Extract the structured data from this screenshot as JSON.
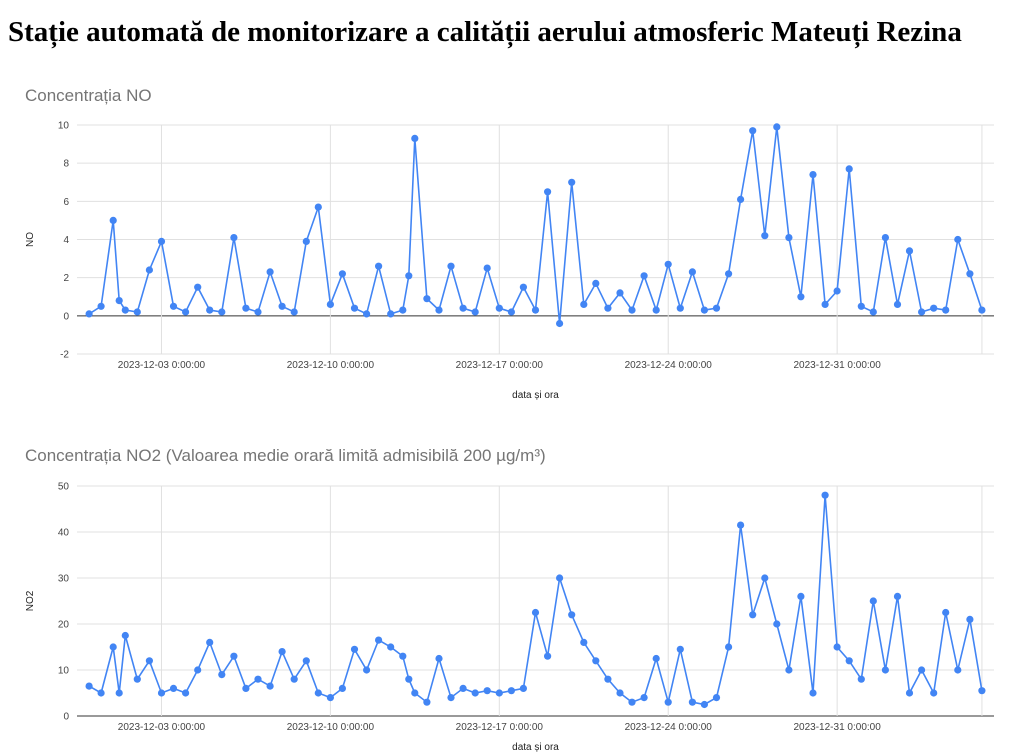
{
  "page": {
    "title": "Stație automată de monitorizare a calității aerului atmosferic Mateuți Rezina"
  },
  "charts": [
    {
      "title": "Concentrația NO",
      "xlabel": "data și ora",
      "ylabel": "NO",
      "xticks": [
        "2023-12-03 0:00:00",
        "2023-12-10 0:00:00",
        "2023-12-17 0:00:00",
        "2023-12-24 0:00:00",
        "2023-12-31 0:00:00"
      ],
      "yticks": [
        "10",
        "8",
        "6",
        "4",
        "2",
        "0",
        "-2"
      ]
    },
    {
      "title": "Concentrația NO2 (Valoarea medie orară limită admisibilă 200 µg/m³)",
      "xlabel": "data și ora",
      "ylabel": "NO2",
      "xticks": [
        "2023-12-03 0:00:00",
        "2023-12-10 0:00:00",
        "2023-12-17 0:00:00",
        "2023-12-24 0:00:00",
        "2023-12-31 0:00:00"
      ],
      "yticks": [
        "50",
        "40",
        "30",
        "20",
        "10",
        "0"
      ]
    }
  ],
  "chart_data": [
    {
      "type": "line",
      "title": "Concentrația NO",
      "xlabel": "data și ora",
      "ylabel": "NO",
      "ylim": [
        -2,
        10
      ],
      "xlim": [
        "2023-11-29 12:00",
        "2024-01-06 12:00"
      ],
      "grid": true,
      "color": "#4285f4",
      "x": [
        "2023-11-30 00:00",
        "2023-11-30 12:00",
        "2023-12-01 00:00",
        "2023-12-01 06:00",
        "2023-12-01 12:00",
        "2023-12-02 00:00",
        "2023-12-02 12:00",
        "2023-12-03 00:00",
        "2023-12-03 12:00",
        "2023-12-04 00:00",
        "2023-12-04 12:00",
        "2023-12-05 00:00",
        "2023-12-05 12:00",
        "2023-12-06 00:00",
        "2023-12-06 12:00",
        "2023-12-07 00:00",
        "2023-12-07 12:00",
        "2023-12-08 00:00",
        "2023-12-08 12:00",
        "2023-12-09 00:00",
        "2023-12-09 12:00",
        "2023-12-10 00:00",
        "2023-12-10 12:00",
        "2023-12-11 00:00",
        "2023-12-11 12:00",
        "2023-12-12 00:00",
        "2023-12-12 12:00",
        "2023-12-13 00:00",
        "2023-12-13 06:00",
        "2023-12-13 12:00",
        "2023-12-14 00:00",
        "2023-12-14 12:00",
        "2023-12-15 00:00",
        "2023-12-15 12:00",
        "2023-12-16 00:00",
        "2023-12-16 12:00",
        "2023-12-17 00:00",
        "2023-12-17 12:00",
        "2023-12-18 00:00",
        "2023-12-18 12:00",
        "2023-12-19 00:00",
        "2023-12-19 12:00",
        "2023-12-20 00:00",
        "2023-12-20 12:00",
        "2023-12-21 00:00",
        "2023-12-21 12:00",
        "2023-12-22 00:00",
        "2023-12-22 12:00",
        "2023-12-23 00:00",
        "2023-12-23 12:00",
        "2023-12-24 00:00",
        "2023-12-24 12:00",
        "2023-12-25 00:00",
        "2023-12-25 12:00",
        "2023-12-26 00:00",
        "2023-12-26 12:00",
        "2023-12-27 00:00",
        "2023-12-27 12:00",
        "2023-12-28 00:00",
        "2023-12-28 12:00",
        "2023-12-29 00:00",
        "2023-12-29 12:00",
        "2023-12-30 00:00",
        "2023-12-30 12:00",
        "2023-12-31 00:00",
        "2023-12-31 12:00",
        "2024-01-01 00:00",
        "2024-01-01 12:00",
        "2024-01-02 00:00",
        "2024-01-02 12:00",
        "2024-01-03 00:00",
        "2024-01-03 12:00",
        "2024-01-04 00:00",
        "2024-01-04 12:00",
        "2024-01-05 00:00",
        "2024-01-05 12:00",
        "2024-01-06 00:00"
      ],
      "values": [
        0.1,
        0.5,
        5.0,
        0.8,
        0.3,
        0.2,
        2.4,
        3.9,
        0.5,
        0.2,
        1.5,
        0.3,
        0.2,
        4.1,
        0.4,
        0.2,
        2.3,
        0.5,
        0.2,
        3.9,
        5.7,
        0.6,
        2.2,
        0.4,
        0.1,
        2.6,
        0.1,
        0.3,
        2.1,
        9.3,
        0.9,
        0.3,
        2.6,
        0.4,
        0.2,
        2.5,
        0.4,
        0.2,
        1.5,
        0.3,
        6.5,
        -0.4,
        7.0,
        0.6,
        1.7,
        0.4,
        1.2,
        0.3,
        2.1,
        0.3,
        2.7,
        0.4,
        2.3,
        0.3,
        0.4,
        2.2,
        6.1,
        9.7,
        4.2,
        9.9,
        4.1,
        1.0,
        7.4,
        0.6,
        1.3,
        7.7,
        0.5,
        0.2,
        4.1,
        0.6,
        3.4,
        0.2,
        0.4,
        0.3,
        4.0,
        2.2,
        0.3
      ]
    },
    {
      "type": "line",
      "title": "Concentrația NO2 (Valoarea medie orară limită admisibilă 200 µg/m³)",
      "xlabel": "data și ora",
      "ylabel": "NO2",
      "ylim": [
        0,
        50
      ],
      "xlim": [
        "2023-11-29 12:00",
        "2024-01-06 12:00"
      ],
      "grid": true,
      "color": "#4285f4",
      "x": [
        "2023-11-30 00:00",
        "2023-11-30 12:00",
        "2023-12-01 00:00",
        "2023-12-01 06:00",
        "2023-12-01 12:00",
        "2023-12-02 00:00",
        "2023-12-02 12:00",
        "2023-12-03 00:00",
        "2023-12-03 12:00",
        "2023-12-04 00:00",
        "2023-12-04 12:00",
        "2023-12-05 00:00",
        "2023-12-05 12:00",
        "2023-12-06 00:00",
        "2023-12-06 12:00",
        "2023-12-07 00:00",
        "2023-12-07 12:00",
        "2023-12-08 00:00",
        "2023-12-08 12:00",
        "2023-12-09 00:00",
        "2023-12-09 12:00",
        "2023-12-10 00:00",
        "2023-12-10 12:00",
        "2023-12-11 00:00",
        "2023-12-11 12:00",
        "2023-12-12 00:00",
        "2023-12-12 12:00",
        "2023-12-13 00:00",
        "2023-12-13 06:00",
        "2023-12-13 12:00",
        "2023-12-14 00:00",
        "2023-12-14 12:00",
        "2023-12-15 00:00",
        "2023-12-15 12:00",
        "2023-12-16 00:00",
        "2023-12-16 12:00",
        "2023-12-17 00:00",
        "2023-12-17 12:00",
        "2023-12-18 00:00",
        "2023-12-18 12:00",
        "2023-12-19 00:00",
        "2023-12-19 12:00",
        "2023-12-20 00:00",
        "2023-12-20 12:00",
        "2023-12-21 00:00",
        "2023-12-21 12:00",
        "2023-12-22 00:00",
        "2023-12-22 12:00",
        "2023-12-23 00:00",
        "2023-12-23 12:00",
        "2023-12-24 00:00",
        "2023-12-24 12:00",
        "2023-12-25 00:00",
        "2023-12-25 12:00",
        "2023-12-26 00:00",
        "2023-12-26 12:00",
        "2023-12-27 00:00",
        "2023-12-27 12:00",
        "2023-12-28 00:00",
        "2023-12-28 12:00",
        "2023-12-29 00:00",
        "2023-12-29 12:00",
        "2023-12-30 00:00",
        "2023-12-30 12:00",
        "2023-12-31 00:00",
        "2023-12-31 12:00",
        "2024-01-01 00:00",
        "2024-01-01 12:00",
        "2024-01-02 00:00",
        "2024-01-02 12:00",
        "2024-01-03 00:00",
        "2024-01-03 12:00",
        "2024-01-04 00:00",
        "2024-01-04 12:00",
        "2024-01-05 00:00",
        "2024-01-05 12:00",
        "2024-01-06 00:00"
      ],
      "values": [
        6.5,
        5.0,
        15.0,
        5.0,
        17.5,
        8.0,
        12.0,
        5.0,
        6.0,
        5.0,
        10.0,
        16.0,
        9.0,
        13.0,
        6.0,
        8.0,
        6.5,
        14.0,
        8.0,
        12.0,
        5.0,
        4.0,
        6.0,
        14.5,
        10.0,
        16.5,
        15.0,
        13.0,
        8.0,
        5.0,
        3.0,
        12.5,
        4.0,
        6.0,
        5.0,
        5.5,
        5.0,
        5.5,
        6.0,
        22.5,
        13.0,
        30.0,
        22.0,
        16.0,
        12.0,
        8.0,
        5.0,
        3.0,
        4.0,
        12.5,
        3.0,
        14.5,
        3.0,
        2.5,
        4.0,
        15.0,
        41.5,
        22.0,
        30.0,
        20.0,
        10.0,
        26.0,
        5.0,
        48.0,
        15.0,
        12.0,
        8.0,
        25.0,
        10.0,
        26.0,
        5.0,
        10.0,
        5.0,
        22.5,
        10.0,
        21.0,
        5.5
      ]
    }
  ]
}
